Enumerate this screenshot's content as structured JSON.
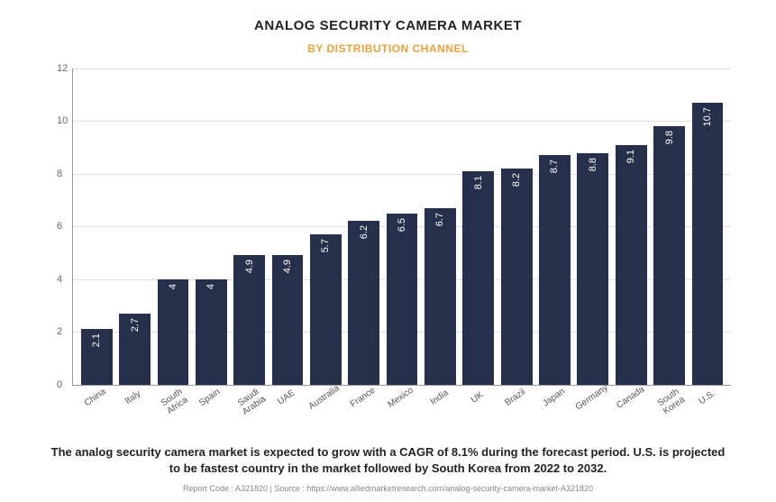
{
  "title": "ANALOG SECURITY CAMERA MARKET",
  "subtitle": "BY DISTRIBUTION CHANNEL",
  "subtitle_color": "#e8a33d",
  "chart": {
    "type": "bar",
    "ylim": [
      0,
      12
    ],
    "ytick_step": 2,
    "bar_color": "#27304a",
    "background_color": "#ffffff",
    "grid_color": "#e0e0e0",
    "axis_color": "#999999",
    "bar_label_color": "#ffffff",
    "bar_label_fontsize": 11,
    "xlabel_fontsize": 10,
    "ytick_fontsize": 11,
    "categories": [
      "China",
      "Italy",
      "South\nAfrica",
      "Spain",
      "Saudi\nArabia",
      "UAE",
      "Australia",
      "France",
      "Mexico",
      "India",
      "UK",
      "Brazil",
      "Japan",
      "Germany",
      "Canada",
      "South\nKorea",
      "U.S."
    ],
    "values": [
      2.1,
      2.7,
      4,
      4,
      4.9,
      4.9,
      5.7,
      6.2,
      6.5,
      6.7,
      8.1,
      8.2,
      8.7,
      8.8,
      9.1,
      9.8,
      10.7
    ]
  },
  "description": "The analog security camera market is expected to grow with a CAGR of 8.1% during the forecast period. U.S. is projected to be fastest country in the market followed by South Korea from 2022 to 2032.",
  "footer": {
    "report_code_label": "Report Code : ",
    "report_code": "A321820",
    "separator": "  |  ",
    "source_label": "Source : ",
    "source": "https://www.alliedmarketresearch.com/analog-security-camera-market-A321820"
  }
}
